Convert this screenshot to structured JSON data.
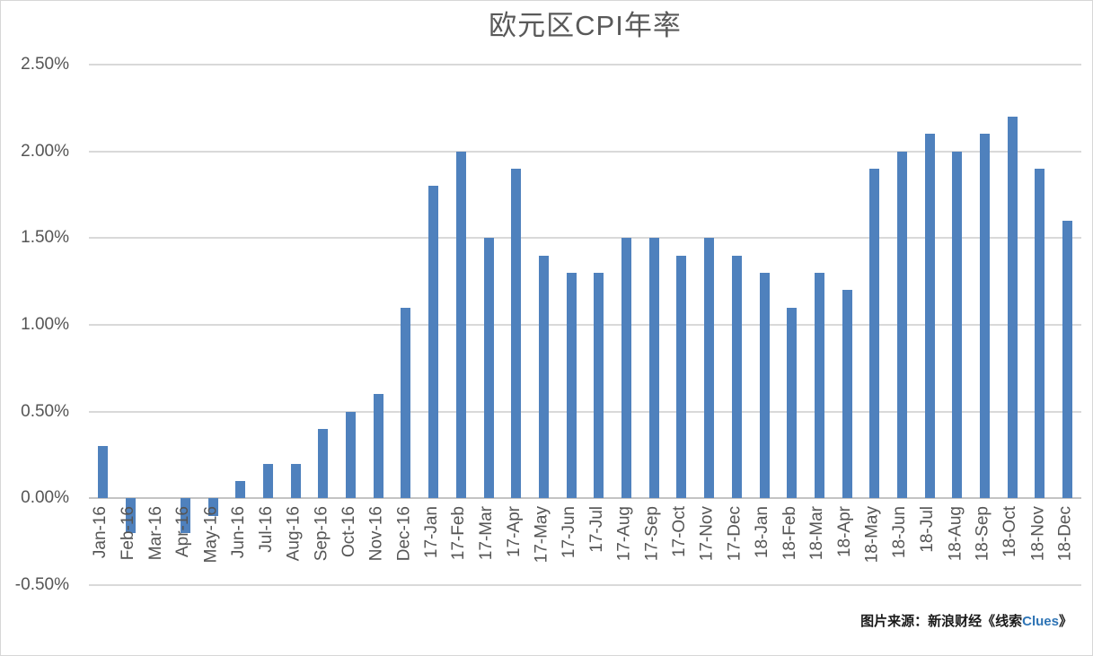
{
  "title": "欧元区CPI年率",
  "source_note": {
    "prefix": "图片来源：新浪财经《线索",
    "brand": "Clues",
    "suffix": "》"
  },
  "colors": {
    "bar": "#4f81bd",
    "gridline": "#d9d9d9",
    "zero_axis_line": "#c3c3c3",
    "tick_label": "#555555",
    "title": "#595959",
    "brand_blue": "#2e74b5",
    "border": "#d7d7d7"
  },
  "chart_data": {
    "type": "bar",
    "title": "欧元区CPI年率",
    "unit": "%",
    "categories": [
      "Jan-16",
      "Feb-16",
      "Mar-16",
      "Apr-16",
      "May-16",
      "Jun-16",
      "Jul-16",
      "Aug-16",
      "Sep-16",
      "Oct-16",
      "Nov-16",
      "Dec-16",
      "17-Jan",
      "17-Feb",
      "17-Mar",
      "17-Apr",
      "17-May",
      "17-Jun",
      "17-Jul",
      "17-Aug",
      "17-Sep",
      "17-Oct",
      "17-Nov",
      "17-Dec",
      "18-Jan",
      "18-Feb",
      "18-Mar",
      "18-Apr",
      "18-May",
      "18-Jun",
      "18-Jul",
      "18-Aug",
      "18-Sep",
      "18-Oct",
      "18-Nov",
      "18-Dec"
    ],
    "values": [
      0.3,
      -0.2,
      0.0,
      -0.2,
      -0.1,
      0.1,
      0.2,
      0.2,
      0.4,
      0.5,
      0.6,
      1.1,
      1.8,
      2.0,
      1.5,
      1.9,
      1.4,
      1.3,
      1.3,
      1.5,
      1.5,
      1.4,
      1.5,
      1.4,
      1.3,
      1.1,
      1.3,
      1.2,
      1.9,
      2.0,
      2.1,
      2.0,
      2.1,
      2.2,
      1.9,
      1.6
    ],
    "ylim": [
      -0.5,
      2.5
    ],
    "ytick_step": 0.5,
    "ytick_labels": [
      "2.50%",
      "2.00%",
      "1.50%",
      "1.00%",
      "0.50%",
      "0.00%",
      "-0.50%"
    ],
    "grid": true,
    "legend": "none",
    "xlabel": "",
    "ylabel": ""
  }
}
